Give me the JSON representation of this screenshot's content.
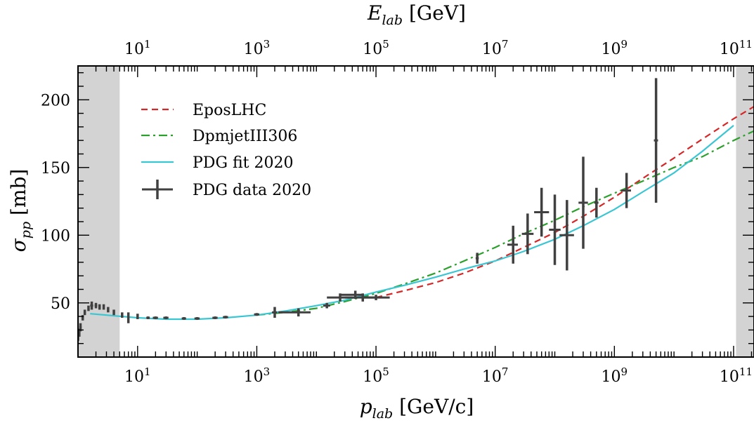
{
  "chart_data": {
    "type": "line",
    "x_scale": "log",
    "x_unit_label": "p_lab [GeV/c]",
    "xlabel": "p_lab [GeV/c]",
    "x2label": "E_lab [GeV]",
    "ylabel": "σ_pp [mb]",
    "xlim": [
      1,
      220000000000.0
    ],
    "ylim": [
      10,
      225
    ],
    "x_ticks": [
      10,
      1000,
      100000,
      10000000,
      1000000000,
      100000000000
    ],
    "x_tick_labels": [
      "10^1",
      "10^3",
      "10^5",
      "10^7",
      "10^9",
      "10^11"
    ],
    "x2_ticks": [
      10,
      1000,
      100000,
      10000000,
      1000000000,
      100000000000
    ],
    "x2_tick_labels": [
      "10^1",
      "10^3",
      "10^5",
      "10^7",
      "10^9",
      "10^11"
    ],
    "y_ticks": [
      50,
      100,
      150,
      200
    ],
    "y_tick_labels": [
      "50",
      "100",
      "150",
      "200"
    ],
    "shaded_x_ranges": [
      [
        1,
        5
      ],
      [
        110000000000.0,
        220000000000.0
      ]
    ],
    "legend_position": "upper-left",
    "grid": false,
    "series": [
      {
        "name": "EposLHC",
        "style": "dashed",
        "color": "#d62728",
        "x": [
          100000.0,
          300000.0,
          1000000.0,
          3000000.0,
          10000000.0,
          30000000.0,
          100000000.0,
          300000000.0,
          1000000000.0,
          3000000000.0,
          10000000000.0,
          30000000000.0,
          100000000000.0,
          220000000000.0
        ],
        "y": [
          54,
          59,
          65,
          72,
          81,
          91,
          102,
          114,
          128,
          142,
          157,
          171,
          186,
          195
        ]
      },
      {
        "name": "DpmjetIII306",
        "style": "dashdot",
        "color": "#2ca02c",
        "x": [
          1000.0,
          3000.0,
          10000.0,
          30000.0,
          100000.0,
          300000.0,
          1000000.0,
          3000000.0,
          10000000.0,
          30000000.0,
          100000000.0,
          300000000.0,
          1000000000.0,
          3000000000.0,
          10000000000.0,
          30000000000.0,
          100000000000.0,
          220000000000.0
        ],
        "y": [
          41,
          43,
          46,
          51,
          57,
          64,
          72,
          81,
          91,
          101,
          111,
          121,
          131,
          140,
          150,
          158,
          170,
          177
        ]
      },
      {
        "name": "PDG fit 2020",
        "style": "solid",
        "color": "#39c6d2",
        "x": [
          1.6,
          3,
          10,
          30,
          100,
          300,
          1000,
          3000,
          10000,
          30000,
          100000,
          300000,
          1000000.0,
          3000000.0,
          10000000.0,
          30000000.0,
          100000000.0,
          300000000.0,
          1000000000.0,
          3000000000.0,
          10000000000.0,
          30000000000.0,
          100000000000.0
        ],
        "y": [
          42,
          41,
          39,
          38,
          38,
          39,
          41,
          44,
          48,
          52,
          58,
          63,
          69,
          75,
          81,
          88,
          97,
          107,
          119,
          132,
          146,
          162,
          181
        ]
      },
      {
        "name": "PDG data 2020",
        "style": "errorbar",
        "color": "#404040",
        "points": [
          {
            "x": 1.0,
            "y": 25,
            "yerr": 3,
            "xlo": 0.98,
            "xhi": 1.02
          },
          {
            "x": 1.05,
            "y": 28,
            "yerr": 3,
            "xlo": 1.0,
            "xhi": 1.1
          },
          {
            "x": 1.1,
            "y": 32,
            "yerr": 3,
            "xlo": 1.05,
            "xhi": 1.15
          },
          {
            "x": 1.2,
            "y": 39,
            "yerr": 2,
            "xlo": 1.15,
            "xhi": 1.25
          },
          {
            "x": 1.3,
            "y": 43,
            "yerr": 2,
            "xlo": 1.25,
            "xhi": 1.35
          },
          {
            "x": 1.5,
            "y": 46,
            "yerr": 2,
            "xlo": 1.45,
            "xhi": 1.55
          },
          {
            "x": 1.7,
            "y": 48,
            "yerr": 3,
            "xlo": 1.6,
            "xhi": 1.8
          },
          {
            "x": 2.0,
            "y": 48,
            "yerr": 2,
            "xlo": 1.9,
            "xhi": 2.1
          },
          {
            "x": 2.3,
            "y": 47,
            "yerr": 2,
            "xlo": 2.2,
            "xhi": 2.4
          },
          {
            "x": 2.7,
            "y": 47,
            "yerr": 2,
            "xlo": 2.6,
            "xhi": 2.8
          },
          {
            "x": 3.2,
            "y": 45,
            "yerr": 2,
            "xlo": 3.1,
            "xhi": 3.3
          },
          {
            "x": 4.0,
            "y": 43,
            "yerr": 2,
            "xlo": 3.9,
            "xhi": 4.1
          },
          {
            "x": 5.5,
            "y": 41,
            "yerr": 2,
            "xlo": 5.3,
            "xhi": 5.7
          },
          {
            "x": 7,
            "y": 39,
            "yerr": 4,
            "xlo": 6.8,
            "xhi": 7.2
          },
          {
            "x": 10,
            "y": 40,
            "yerr": 2,
            "xlo": 9.7,
            "xhi": 10.3
          },
          {
            "x": 15,
            "y": 39,
            "yerr": 1,
            "xlo": 14,
            "xhi": 16
          },
          {
            "x": 20,
            "y": 39,
            "yerr": 1,
            "xlo": 18,
            "xhi": 22
          },
          {
            "x": 30,
            "y": 39,
            "yerr": 1,
            "xlo": 27,
            "xhi": 33
          },
          {
            "x": 60,
            "y": 38.5,
            "yerr": 1,
            "xlo": 55,
            "xhi": 65
          },
          {
            "x": 100,
            "y": 38.5,
            "yerr": 1,
            "xlo": 90,
            "xhi": 110
          },
          {
            "x": 200,
            "y": 39,
            "yerr": 1,
            "xlo": 180,
            "xhi": 220
          },
          {
            "x": 300,
            "y": 39.5,
            "yerr": 1,
            "xlo": 270,
            "xhi": 330
          },
          {
            "x": 1000,
            "y": 41.5,
            "yerr": 1,
            "xlo": 900,
            "xhi": 1100
          },
          {
            "x": 2000,
            "y": 43,
            "yerr": 4,
            "xlo": 1800,
            "xhi": 2200
          },
          {
            "x": 5000,
            "y": 43,
            "yerr": 3,
            "xlo": 2300,
            "xhi": 8000
          },
          {
            "x": 15000,
            "y": 48,
            "yerr": 2,
            "xlo": 13000,
            "xhi": 17000
          },
          {
            "x": 25000,
            "y": 54,
            "yerr": 3,
            "xlo": 15000,
            "xhi": 40000
          },
          {
            "x": 45000,
            "y": 56,
            "yerr": 3,
            "xlo": 25000,
            "xhi": 60000
          },
          {
            "x": 60000,
            "y": 54,
            "yerr": 3,
            "xlo": 30000,
            "xhi": 100000
          },
          {
            "x": 100000,
            "y": 54,
            "yerr": 2,
            "xlo": 60000,
            "xhi": 170000
          },
          {
            "x": 5000000.0,
            "y": 83,
            "yerr": 4,
            "xlo": 4700000.0,
            "xhi": 5300000.0
          },
          {
            "x": 20000000.0,
            "y": 93,
            "yerr": 14,
            "xlo": 16000000.0,
            "xhi": 24000000.0
          },
          {
            "x": 35000000.0,
            "y": 101,
            "yerr": 15,
            "xlo": 28000000.0,
            "xhi": 44000000.0
          },
          {
            "x": 60000000.0,
            "y": 117,
            "yerr": 18,
            "xlo": 45000000.0,
            "xhi": 80000000.0
          },
          {
            "x": 100000000.0,
            "y": 104,
            "yerr": 26,
            "xlo": 80000000.0,
            "xhi": 125000000.0
          },
          {
            "x": 160000000.0,
            "y": 100,
            "yerr": 26,
            "xlo": 120000000.0,
            "xhi": 210000000.0
          },
          {
            "x": 300000000.0,
            "y": 124,
            "yerr": 34,
            "xlo": 250000000.0,
            "xhi": 360000000.0
          },
          {
            "x": 500000000.0,
            "y": 124,
            "yerr": 11,
            "xlo": 460000000.0,
            "xhi": 540000000.0
          },
          {
            "x": 1600000000.0,
            "y": 133,
            "yerr": 13,
            "xlo": 1300000000.0,
            "xhi": 1900000000.0
          },
          {
            "x": 5000000000.0,
            "y": 170,
            "yerr": 46,
            "xlo": 4600000000.0,
            "xhi": 5400000000.0
          }
        ]
      }
    ]
  }
}
